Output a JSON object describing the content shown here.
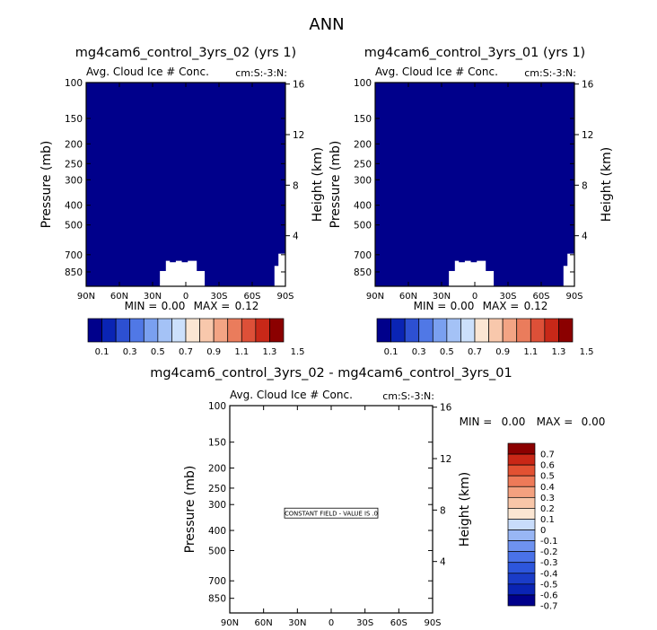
{
  "page": {
    "title": "ANN"
  },
  "colors": {
    "field": "#00008b",
    "frame": "#000000",
    "main_scale": [
      "#00008b",
      "#0a24b4",
      "#2d50d2",
      "#5078e6",
      "#7aa0f0",
      "#a4c2f6",
      "#cce0fb",
      "#fbe6d3",
      "#f8c8ac",
      "#f3a484",
      "#ea7c5c",
      "#dd5038",
      "#c82818",
      "#8b0000"
    ],
    "diff_scale": [
      "#00008b",
      "#0a24b4",
      "#1a3cc8",
      "#2d56dc",
      "#4a72e8",
      "#6e92f0",
      "#98b6f5",
      "#c8dcfb",
      "#fbe6d3",
      "#f8c6a8",
      "#f4a17f",
      "#ee7a58",
      "#e25132",
      "#c92716",
      "#8b0000"
    ]
  },
  "panels": [
    {
      "id": "p1",
      "title": "mg4cam6_control_3yrs_02 (yrs 1)",
      "var_label": "Avg. Cloud Ice # Conc.",
      "units_label": "cm:S:-3:N:",
      "ylabel": "Pressure (mb)",
      "ylabel_right": "Height (km)",
      "yticks": [
        "100",
        "150",
        "200",
        "250",
        "300",
        "400",
        "500",
        "700",
        "850"
      ],
      "yticks_right": [
        "16",
        "12",
        "8",
        "4"
      ],
      "xticks": [
        "90N",
        "60N",
        "30N",
        "0",
        "30S",
        "60S",
        "90S"
      ],
      "stats": {
        "min_label": "MIN =",
        "min": "0.00",
        "max_label": "MAX =",
        "max": "0.12"
      },
      "colorbar_labels": [
        "0.1",
        "0.3",
        "0.5",
        "0.7",
        "0.9",
        "1.1",
        "1.3",
        "1.5"
      ]
    },
    {
      "id": "p2",
      "title": "mg4cam6_control_3yrs_01 (yrs 1)",
      "var_label": "Avg. Cloud Ice # Conc.",
      "units_label": "cm:S:-3:N:",
      "ylabel": "Pressure (mb)",
      "ylabel_right": "Height (km)",
      "yticks": [
        "100",
        "150",
        "200",
        "250",
        "300",
        "400",
        "500",
        "700",
        "850"
      ],
      "yticks_right": [
        "16",
        "12",
        "8",
        "4"
      ],
      "xticks": [
        "90N",
        "60N",
        "30N",
        "0",
        "30S",
        "60S",
        "90S"
      ],
      "stats": {
        "min_label": "MIN =",
        "min": "0.00",
        "max_label": "MAX =",
        "max": "0.12"
      },
      "colorbar_labels": [
        "0.1",
        "0.3",
        "0.5",
        "0.7",
        "0.9",
        "1.1",
        "1.3",
        "1.5"
      ]
    },
    {
      "id": "p3",
      "title": "mg4cam6_control_3yrs_02 - mg4cam6_control_3yrs_01",
      "var_label": "Avg. Cloud Ice # Conc.",
      "units_label": "cm:S:-3:N:",
      "ylabel": "Pressure (mb)",
      "ylabel_right": "Height (km)",
      "yticks": [
        "100",
        "150",
        "200",
        "250",
        "300",
        "400",
        "500",
        "700",
        "850"
      ],
      "yticks_right": [
        "16",
        "12",
        "8",
        "4"
      ],
      "xticks": [
        "90N",
        "60N",
        "30N",
        "0",
        "30S",
        "60S",
        "90S"
      ],
      "stats": {
        "min_label": "MIN =",
        "min": "0.00",
        "max_label": "MAX =",
        "max": "0.00"
      },
      "constant_note": "CONSTANT FIELD - VALUE IS .0",
      "colorbar_labels": [
        "0.7",
        "0.6",
        "0.5",
        "0.4",
        "0.3",
        "0.2",
        "0.1",
        "0",
        "-0.1",
        "-0.2",
        "-0.3",
        "-0.4",
        "-0.5",
        "-0.6",
        "-0.7"
      ]
    }
  ],
  "chart_data": [
    {
      "type": "heatmap",
      "title": "mg4cam6_control_3yrs_02 (yrs 1)",
      "subtitle": "Avg. Cloud Ice # Conc.",
      "units": "cm:S:-3:N:",
      "xlabel": "",
      "ylabel": "Pressure (mb)",
      "ylabel_right": "Height (km)",
      "x_ticks": [
        "90N",
        "60N",
        "30N",
        "0",
        "30S",
        "60S",
        "90S"
      ],
      "y_ticks": [
        100,
        150,
        200,
        250,
        300,
        400,
        500,
        700,
        850
      ],
      "y_scale": "log",
      "y_inverted": true,
      "ylim": [
        100,
        1000
      ],
      "min": 0.0,
      "max": 0.12,
      "contour_levels": [
        0.1,
        0.2,
        0.3,
        0.4,
        0.5,
        0.6,
        0.7,
        0.8,
        0.9,
        1.0,
        1.1,
        1.2,
        1.3,
        1.4,
        1.5
      ],
      "field": "values below 0.1 everywhere; missing data below surface near 15N-25S (700-850 mb) and 80S-90S"
    },
    {
      "type": "heatmap",
      "title": "mg4cam6_control_3yrs_01 (yrs 1)",
      "subtitle": "Avg. Cloud Ice # Conc.",
      "units": "cm:S:-3:N:",
      "xlabel": "",
      "ylabel": "Pressure (mb)",
      "ylabel_right": "Height (km)",
      "x_ticks": [
        "90N",
        "60N",
        "30N",
        "0",
        "30S",
        "60S",
        "90S"
      ],
      "y_ticks": [
        100,
        150,
        200,
        250,
        300,
        400,
        500,
        700,
        850
      ],
      "y_scale": "log",
      "y_inverted": true,
      "ylim": [
        100,
        1000
      ],
      "min": 0.0,
      "max": 0.12,
      "contour_levels": [
        0.1,
        0.2,
        0.3,
        0.4,
        0.5,
        0.6,
        0.7,
        0.8,
        0.9,
        1.0,
        1.1,
        1.2,
        1.3,
        1.4,
        1.5
      ],
      "field": "values below 0.1 everywhere; missing data below surface near 15N-25S (700-850 mb) and 80S-90S"
    },
    {
      "type": "heatmap",
      "title": "mg4cam6_control_3yrs_02 - mg4cam6_control_3yrs_01",
      "subtitle": "Avg. Cloud Ice # Conc.",
      "units": "cm:S:-3:N:",
      "xlabel": "",
      "ylabel": "Pressure (mb)",
      "ylabel_right": "Height (km)",
      "x_ticks": [
        "90N",
        "60N",
        "30N",
        "0",
        "30S",
        "60S",
        "90S"
      ],
      "y_ticks": [
        100,
        150,
        200,
        250,
        300,
        400,
        500,
        700,
        850
      ],
      "y_scale": "log",
      "y_inverted": true,
      "ylim": [
        100,
        1000
      ],
      "min": 0.0,
      "max": 0.0,
      "contour_levels": [
        -0.7,
        -0.6,
        -0.5,
        -0.4,
        -0.3,
        -0.2,
        -0.1,
        0,
        0.1,
        0.2,
        0.3,
        0.4,
        0.5,
        0.6,
        0.7
      ],
      "field": "constant field, value 0"
    }
  ]
}
